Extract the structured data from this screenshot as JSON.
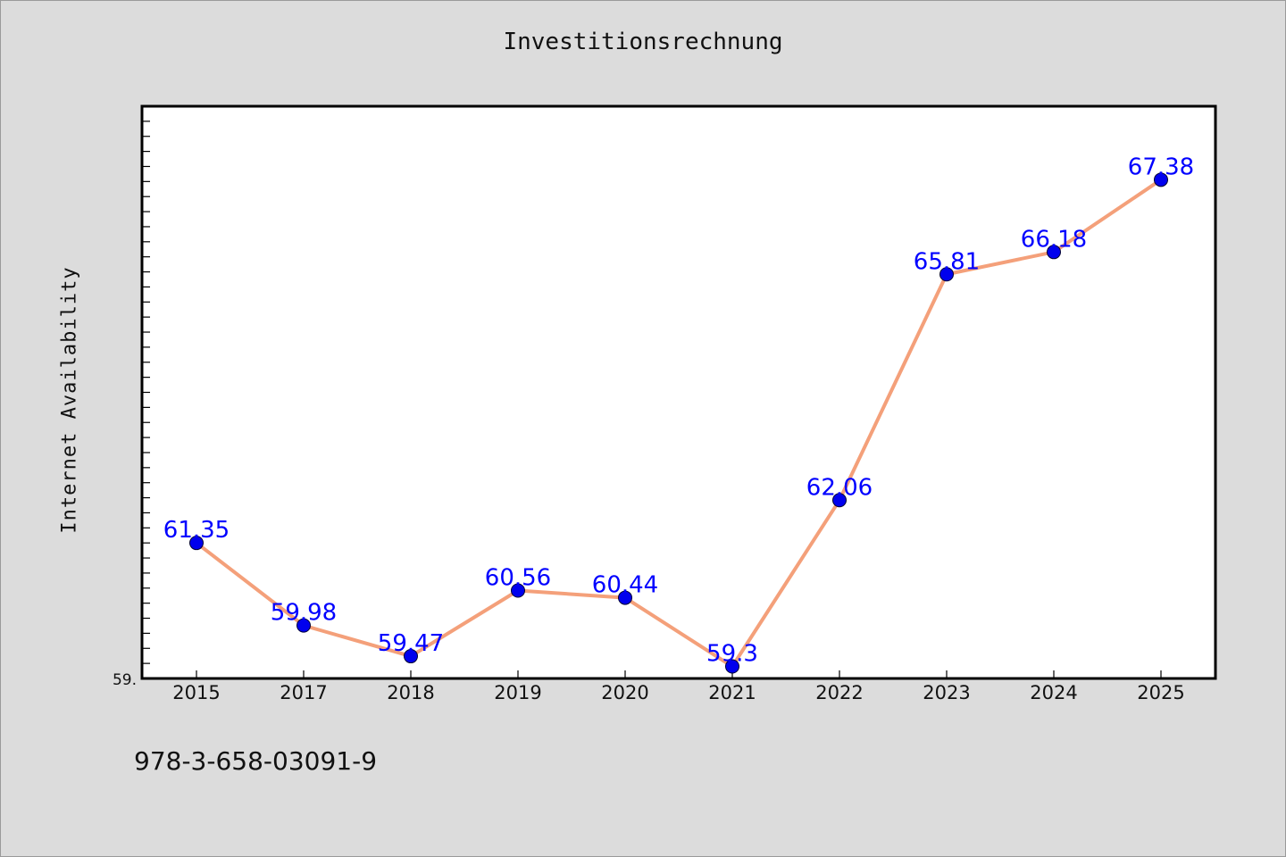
{
  "page": {
    "title": "Investitionsrechnung",
    "footer_code": "978-3-658-03091-9"
  },
  "chart_data": {
    "type": "line",
    "title": "Investitionsrechnung",
    "xlabel": "",
    "ylabel": "Internet Availability",
    "categories": [
      "2015",
      "2017",
      "2018",
      "2019",
      "2020",
      "2021",
      "2022",
      "2023",
      "2024",
      "2025"
    ],
    "series": [
      {
        "values": [
          61.35,
          59.98,
          59.47,
          60.56,
          60.44,
          59.3,
          62.06,
          65.81,
          66.18,
          67.38
        ],
        "data_labels": [
          "61.35",
          "59.98",
          "59.47",
          "60.56",
          "60.44",
          "59.3",
          "62.06",
          "65.81",
          "66.18",
          "67.38"
        ],
        "line_color": "#f4a07a",
        "marker_color": "#0000ee",
        "label_color": "#0000ff"
      }
    ],
    "y_tick_labels": [
      "59."
    ],
    "ylim": [
      59.1,
      68.6
    ],
    "y_minor_tick_step": 0.25,
    "y_major_tick_step": 0.5,
    "grid": false,
    "legend": "none"
  }
}
